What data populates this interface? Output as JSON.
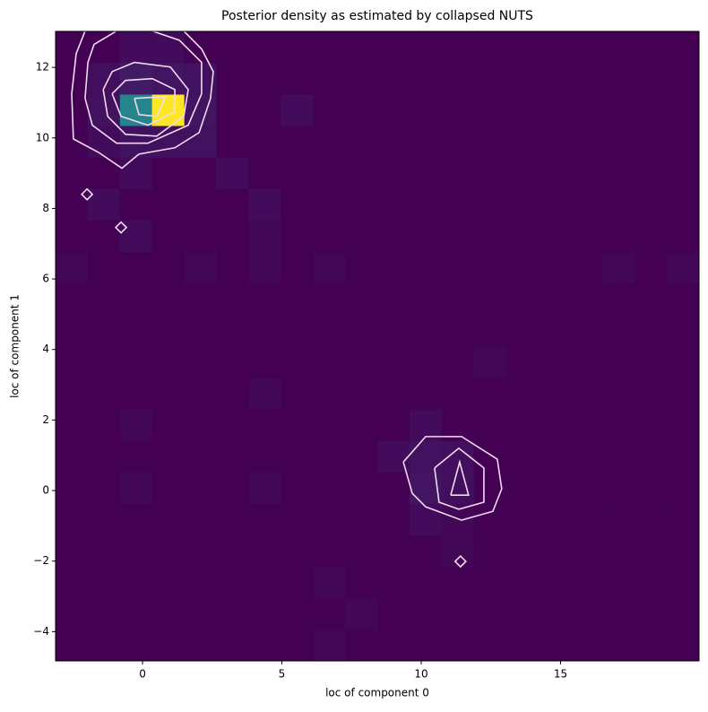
{
  "chart_data": {
    "type": "heatmap",
    "title": "Posterior density as estimated by collapsed NUTS",
    "xlabel": "loc of component 0",
    "ylabel": "loc of component 1",
    "colormap": "viridis",
    "xlim": [
      -3.12,
      19.97
    ],
    "ylim": [
      -4.83,
      13.02
    ],
    "xticks": [
      0,
      5,
      10,
      15
    ],
    "yticks": [
      {
        "value": -4,
        "label": "−4"
      },
      {
        "value": -2,
        "label": "−2"
      },
      0,
      2,
      4,
      6,
      8,
      10,
      12
    ],
    "xbins": [
      -3.12,
      -1.97,
      -0.81,
      0.34,
      1.5,
      2.65,
      3.81,
      4.96,
      6.12,
      7.27,
      8.43,
      9.58,
      10.73,
      11.89,
      13.04,
      14.2,
      15.35,
      16.51,
      17.66,
      18.82,
      19.97
    ],
    "ybins": [
      -4.83,
      -3.94,
      -3.05,
      -2.15,
      -1.26,
      -0.37,
      0.53,
      1.42,
      2.31,
      3.2,
      4.1,
      4.99,
      5.88,
      6.77,
      7.67,
      8.56,
      9.45,
      10.35,
      11.24,
      12.13,
      13.02
    ],
    "z": [
      [
        0,
        0,
        0,
        0,
        0,
        0,
        0,
        0,
        0.02,
        0,
        0,
        0,
        0,
        0,
        0,
        0,
        0,
        0,
        0,
        0
      ],
      [
        0,
        0,
        0,
        0,
        0,
        0,
        0,
        0,
        0,
        0.02,
        0,
        0,
        0,
        0,
        0,
        0,
        0,
        0,
        0,
        0
      ],
      [
        0,
        0,
        0,
        0,
        0,
        0,
        0,
        0,
        0.02,
        0,
        0,
        0,
        0,
        0,
        0,
        0,
        0,
        0,
        0,
        0
      ],
      [
        0,
        0,
        0,
        0,
        0,
        0,
        0,
        0,
        0,
        0,
        0,
        0,
        0.02,
        0,
        0,
        0,
        0,
        0,
        0,
        0
      ],
      [
        0,
        0,
        0,
        0,
        0,
        0,
        0,
        0,
        0,
        0,
        0,
        0.03,
        0.02,
        0,
        0,
        0,
        0,
        0,
        0,
        0
      ],
      [
        0,
        0,
        0.02,
        0,
        0,
        0,
        0.02,
        0,
        0,
        0,
        0,
        0.06,
        0.04,
        0,
        0,
        0,
        0,
        0,
        0,
        0
      ],
      [
        0,
        0,
        0,
        0,
        0,
        0,
        0,
        0,
        0,
        0,
        0.03,
        0.05,
        0.04,
        0,
        0,
        0,
        0,
        0,
        0,
        0
      ],
      [
        0,
        0,
        0.02,
        0,
        0,
        0,
        0,
        0,
        0,
        0,
        0,
        0.03,
        0,
        0,
        0,
        0,
        0,
        0,
        0,
        0
      ],
      [
        0,
        0,
        0,
        0,
        0,
        0,
        0.02,
        0,
        0,
        0,
        0,
        0,
        0,
        0,
        0,
        0,
        0,
        0,
        0,
        0
      ],
      [
        0,
        0,
        0,
        0,
        0,
        0,
        0,
        0,
        0,
        0,
        0,
        0,
        0,
        0.02,
        0,
        0,
        0,
        0,
        0,
        0
      ],
      [
        0,
        0,
        0,
        0,
        0,
        0,
        0,
        0,
        0,
        0,
        0,
        0,
        0,
        0,
        0,
        0,
        0,
        0,
        0,
        0
      ],
      [
        0,
        0,
        0,
        0,
        0,
        0,
        0,
        0,
        0,
        0,
        0,
        0,
        0,
        0,
        0,
        0,
        0,
        0,
        0,
        0
      ],
      [
        0.02,
        0,
        0,
        0,
        0.02,
        0,
        0.02,
        0,
        0.02,
        0,
        0,
        0,
        0,
        0,
        0,
        0,
        0,
        0.02,
        0,
        0.02
      ],
      [
        0,
        0,
        0.03,
        0,
        0,
        0,
        0.02,
        0,
        0,
        0,
        0,
        0,
        0,
        0,
        0,
        0,
        0,
        0,
        0,
        0
      ],
      [
        0,
        0.03,
        0,
        0,
        0,
        0,
        0.03,
        0,
        0,
        0,
        0,
        0,
        0,
        0,
        0,
        0,
        0,
        0,
        0,
        0
      ],
      [
        0,
        0,
        0.03,
        0,
        0,
        0.03,
        0,
        0,
        0,
        0,
        0,
        0,
        0,
        0,
        0,
        0,
        0,
        0,
        0,
        0
      ],
      [
        0,
        0.03,
        0.05,
        0.05,
        0.05,
        0,
        0,
        0,
        0,
        0,
        0,
        0,
        0,
        0,
        0,
        0,
        0,
        0,
        0,
        0
      ],
      [
        0,
        0.05,
        0.45,
        1,
        0.06,
        0,
        0,
        0.03,
        0,
        0,
        0,
        0,
        0,
        0,
        0,
        0,
        0,
        0,
        0,
        0
      ],
      [
        0,
        0.04,
        0.08,
        0.06,
        0.05,
        0,
        0,
        0,
        0,
        0,
        0,
        0,
        0,
        0,
        0,
        0,
        0,
        0,
        0,
        0
      ],
      [
        0,
        0,
        0.03,
        0.03,
        0,
        0,
        0,
        0,
        0,
        0,
        0,
        0,
        0,
        0,
        0,
        0,
        0,
        0,
        0,
        0
      ]
    ],
    "contour_color": "#efdcef",
    "contours": [
      {
        "x": [
          -2.06,
          -2.38,
          -2.54,
          -2.48,
          -1.58,
          -0.74,
          -0.13,
          1.16,
          2.03,
          2.44,
          2.54,
          2.12,
          1.48
        ],
        "y": [
          13.03,
          12.39,
          11.25,
          9.97,
          9.59,
          9.14,
          9.54,
          9.72,
          10.15,
          11.12,
          11.88,
          12.52,
          13.03
        ]
      },
      {
        "x": [
          -1.96,
          -2.06,
          -1.8,
          -0.93,
          0.19,
          1.64,
          2.12,
          2.12,
          1.32,
          0.35,
          -0.93,
          -1.74,
          -1.96
        ],
        "y": [
          12.14,
          11.12,
          10.36,
          9.85,
          9.85,
          10.36,
          11.25,
          12.14,
          12.77,
          13.03,
          13.03,
          12.65,
          12.14
        ]
      },
      {
        "x": [
          -1.41,
          -1.25,
          -0.61,
          0.51,
          1.48,
          1.64,
          1.0,
          -0.29,
          -1.09,
          -1.41
        ],
        "y": [
          11.37,
          10.61,
          10.1,
          10.05,
          10.61,
          11.37,
          12.01,
          12.14,
          11.88,
          11.37
        ]
      },
      {
        "x": [
          -1.09,
          -0.77,
          0.19,
          1.16,
          1.16,
          0.35,
          -0.61,
          -1.09
        ],
        "y": [
          11.25,
          10.61,
          10.36,
          10.74,
          11.37,
          11.68,
          11.63,
          11.25
        ]
      },
      {
        "x": [
          -0.29,
          0.84,
          0.51,
          -0.13,
          -0.29
        ],
        "y": [
          11.12,
          11.17,
          10.61,
          10.66,
          11.12
        ]
      },
      {
        "x": [
          9.36,
          10.16,
          11.45,
          12.73,
          12.89,
          12.57,
          11.45,
          10.16,
          9.68,
          9.36
        ],
        "y": [
          0.81,
          1.53,
          1.53,
          0.89,
          0.05,
          -0.59,
          -0.84,
          -0.46,
          -0.08,
          0.81
        ]
      },
      {
        "x": [
          10.48,
          11.35,
          12.25,
          12.25,
          11.35,
          10.64,
          10.48
        ],
        "y": [
          0.64,
          1.2,
          0.64,
          -0.33,
          -0.53,
          -0.33,
          0.64
        ]
      },
      {
        "x": [
          11.06,
          11.38,
          11.7,
          11.06
        ],
        "y": [
          -0.13,
          0.81,
          -0.13,
          -0.13
        ]
      }
    ],
    "markers": {
      "x": [
        -1.99,
        -0.77,
        11.41
      ],
      "y": [
        8.4,
        7.46,
        -2.01
      ]
    }
  }
}
